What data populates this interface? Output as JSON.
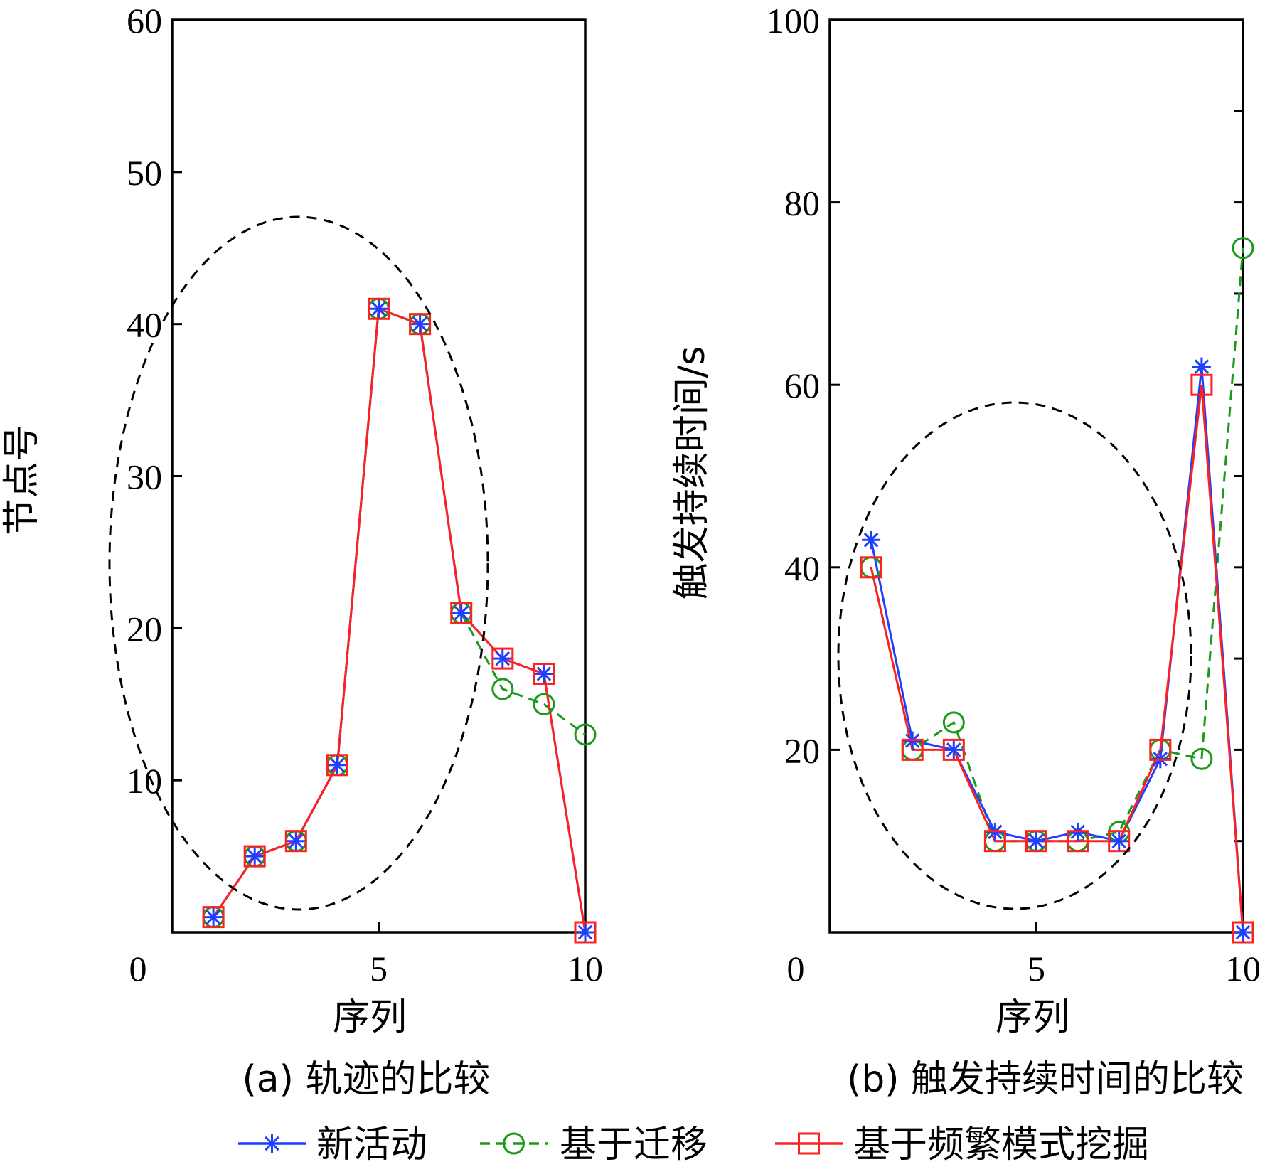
{
  "chart_data": [
    {
      "id": "a",
      "type": "line",
      "caption": "(a) 轨迹的比较",
      "xlabel": "序列",
      "ylabel": "节点号",
      "xlim": [
        0,
        10
      ],
      "ylim": [
        0,
        60
      ],
      "xticks": [
        0,
        5,
        10
      ],
      "yticks": [
        10,
        20,
        30,
        40,
        50,
        60
      ],
      "series": [
        {
          "name": "新活动",
          "color": "#1f3fff",
          "marker": "star",
          "dash": "solid",
          "x": [
            1,
            2,
            3,
            4,
            5,
            6,
            7,
            8,
            9,
            10
          ],
          "y": [
            1,
            5,
            6,
            11,
            41,
            40,
            21,
            18,
            17,
            0
          ]
        },
        {
          "name": "基于迁移",
          "color": "#1a9a1a",
          "marker": "circle",
          "dash": "dashed",
          "x": [
            1,
            2,
            3,
            4,
            5,
            6,
            7,
            8,
            9,
            10
          ],
          "y": [
            1,
            5,
            6,
            11,
            41,
            40,
            21,
            16,
            15,
            13
          ]
        },
        {
          "name": "基于频繁模式挖掘",
          "color": "#ff2020",
          "marker": "square",
          "dash": "solid",
          "x": [
            1,
            2,
            3,
            4,
            5,
            6,
            7,
            8,
            9,
            10
          ],
          "y": [
            1,
            5,
            6,
            11,
            41,
            40,
            21,
            18,
            17,
            0
          ]
        }
      ]
    },
    {
      "id": "b",
      "type": "line",
      "caption": "(b) 触发持续时间的比较",
      "xlabel": "序列",
      "ylabel": "触发持续时间/s",
      "xlim": [
        0,
        10
      ],
      "ylim": [
        0,
        100
      ],
      "xticks": [
        0,
        5,
        10
      ],
      "yticks": [
        20,
        40,
        60,
        80,
        100
      ],
      "series": [
        {
          "name": "新活动",
          "color": "#1f3fff",
          "marker": "star",
          "dash": "solid",
          "x": [
            1,
            2,
            3,
            4,
            5,
            6,
            7,
            8,
            9,
            10
          ],
          "y": [
            43,
            21,
            20,
            11,
            10,
            11,
            10,
            19,
            62,
            0
          ]
        },
        {
          "name": "基于迁移",
          "color": "#1a9a1a",
          "marker": "circle",
          "dash": "dashed",
          "x": [
            1,
            2,
            3,
            4,
            5,
            6,
            7,
            8,
            9,
            10
          ],
          "y": [
            40,
            20,
            23,
            10,
            10,
            10,
            11,
            20,
            19,
            75
          ]
        },
        {
          "name": "基于频繁模式挖掘",
          "color": "#ff2020",
          "marker": "square",
          "dash": "solid",
          "x": [
            1,
            2,
            3,
            4,
            5,
            6,
            7,
            8,
            9,
            10
          ],
          "y": [
            40,
            20,
            20,
            10,
            10,
            10,
            10,
            20,
            60,
            0
          ]
        }
      ]
    }
  ],
  "legend": {
    "placement": "bottom",
    "items": [
      {
        "label": "新活动",
        "color": "#1f3fff",
        "marker": "star",
        "dash": "solid"
      },
      {
        "label": "基于迁移",
        "color": "#1a9a1a",
        "marker": "circle",
        "dash": "dashed"
      },
      {
        "label": "基于频繁模式挖掘",
        "color": "#ff2020",
        "marker": "square",
        "dash": "solid"
      }
    ]
  }
}
